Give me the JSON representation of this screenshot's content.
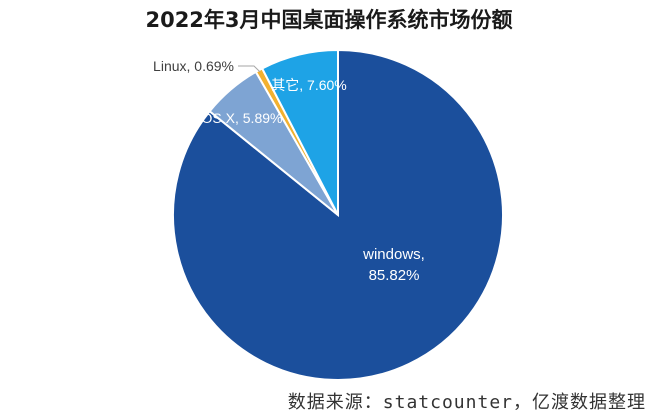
{
  "chart_data": {
    "type": "pie",
    "title": "2022年3月中国桌面操作系统市场份额",
    "start_angle_deg": 0,
    "direction": "clockwise",
    "slices": [
      {
        "name": "windows",
        "value": 85.82,
        "label_line1": "windows,",
        "label_line2": "85.82%",
        "color": "#1b4f9c"
      },
      {
        "name": "OS X",
        "value": 5.89,
        "label": "OS X, 5.89%",
        "color": "#7ea4d3"
      },
      {
        "name": "Linux",
        "value": 0.69,
        "label": "Linux, 0.69%",
        "color": "#f2b130"
      },
      {
        "name": "其它",
        "value": 7.6,
        "label": "其它, 7.60%",
        "color": "#1ea3e6"
      }
    ],
    "source": "数据来源：statcounter，亿渡数据整理"
  }
}
